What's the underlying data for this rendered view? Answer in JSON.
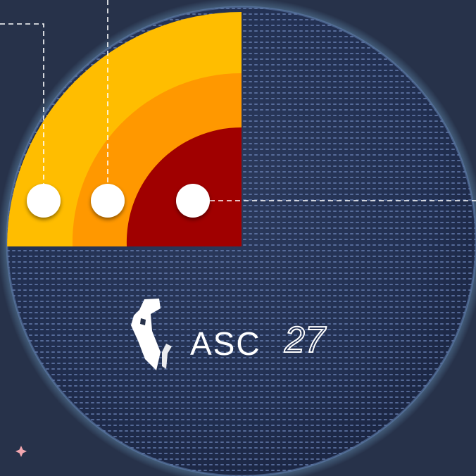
{
  "colors": {
    "background": "#27324a",
    "sphere_dark": "#1f2a44",
    "sphere_dot": "#6f86bb",
    "glow": "#7fb9e0",
    "layer_outer": "#ffbd00",
    "layer_middle": "#ff9800",
    "layer_inner": "#a00000",
    "marker": "#ffffff",
    "sparkle": "#f2a7b0"
  },
  "layers": [
    {
      "name": "outer-layer",
      "color_key": "layer_outer"
    },
    {
      "name": "middle-layer",
      "color_key": "layer_middle"
    },
    {
      "name": "inner-layer",
      "color_key": "layer_inner"
    }
  ],
  "logo": {
    "text_main": "ASC",
    "text_num": "27",
    "icon": "knight-chess-icon"
  },
  "decor_icons": [
    "sparkle-icon"
  ]
}
